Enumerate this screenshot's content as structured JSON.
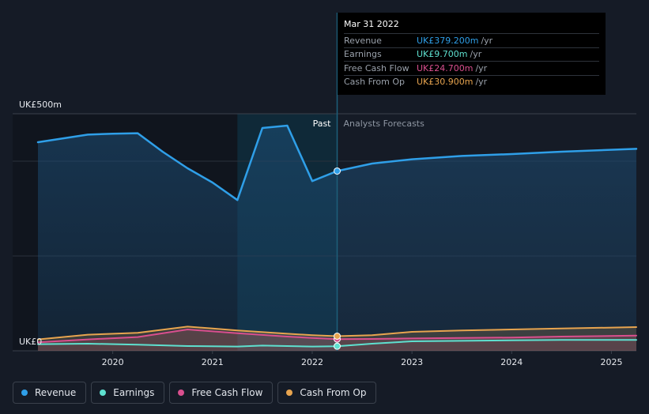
{
  "chart_data": {
    "type": "line",
    "title": "",
    "xlabel": "",
    "ylabel": "",
    "y_axis_labels": [
      "UK£500m",
      "UK£0"
    ],
    "ylim": [
      0,
      500
    ],
    "xlim": [
      2019.25,
      2025.25
    ],
    "x_ticks": [
      {
        "value": 2020,
        "label": "2020"
      },
      {
        "value": 2021,
        "label": "2021"
      },
      {
        "value": 2022,
        "label": "2022"
      },
      {
        "value": 2023,
        "label": "2023"
      },
      {
        "value": 2024,
        "label": "2024"
      },
      {
        "value": 2025,
        "label": "2025"
      }
    ],
    "regions": {
      "past_label": "Past",
      "forecast_label": "Analysts Forecasts",
      "divider_x": 2022.25,
      "highlight_start_x": 2021.25
    },
    "series": [
      {
        "name": "Revenue",
        "color": "#2f9fe8",
        "area": true,
        "points": [
          [
            2019.25,
            440
          ],
          [
            2019.75,
            456
          ],
          [
            2020.0,
            458
          ],
          [
            2020.25,
            459
          ],
          [
            2020.5,
            420
          ],
          [
            2020.75,
            385
          ],
          [
            2021.0,
            355
          ],
          [
            2021.25,
            318
          ],
          [
            2021.5,
            470
          ],
          [
            2021.75,
            475
          ],
          [
            2022.0,
            358
          ],
          [
            2022.25,
            379.2
          ],
          [
            2022.6,
            395
          ],
          [
            2023.0,
            404
          ],
          [
            2023.5,
            411
          ],
          [
            2024.0,
            415
          ],
          [
            2024.5,
            420
          ],
          [
            2025.25,
            426
          ]
        ]
      },
      {
        "name": "Earnings",
        "color": "#5ee0cf",
        "area": false,
        "points": [
          [
            2019.25,
            14
          ],
          [
            2019.75,
            15
          ],
          [
            2020.25,
            13
          ],
          [
            2020.75,
            10
          ],
          [
            2021.25,
            9
          ],
          [
            2021.5,
            11
          ],
          [
            2022.0,
            9
          ],
          [
            2022.25,
            9.7
          ],
          [
            2022.6,
            15
          ],
          [
            2023.0,
            20
          ],
          [
            2023.5,
            21
          ],
          [
            2024.0,
            22
          ],
          [
            2024.5,
            23
          ],
          [
            2025.25,
            23
          ]
        ]
      },
      {
        "name": "Free Cash Flow",
        "color": "#d94f8e",
        "area": true,
        "points": [
          [
            2019.25,
            18
          ],
          [
            2019.75,
            24
          ],
          [
            2020.25,
            29
          ],
          [
            2020.75,
            45
          ],
          [
            2021.0,
            41
          ],
          [
            2021.25,
            37
          ],
          [
            2021.75,
            30
          ],
          [
            2022.0,
            27
          ],
          [
            2022.25,
            24.7
          ],
          [
            2022.6,
            25
          ],
          [
            2023.0,
            26
          ],
          [
            2023.5,
            27
          ],
          [
            2024.0,
            28
          ],
          [
            2024.5,
            30
          ],
          [
            2025.25,
            32
          ]
        ]
      },
      {
        "name": "Cash From Op",
        "color": "#e7a44f",
        "area": true,
        "points": [
          [
            2019.25,
            24
          ],
          [
            2019.75,
            34
          ],
          [
            2020.25,
            38
          ],
          [
            2020.75,
            51
          ],
          [
            2021.0,
            47
          ],
          [
            2021.25,
            43
          ],
          [
            2021.75,
            36
          ],
          [
            2022.0,
            33
          ],
          [
            2022.25,
            30.9
          ],
          [
            2022.6,
            33
          ],
          [
            2023.0,
            40
          ],
          [
            2023.5,
            43
          ],
          [
            2024.0,
            45
          ],
          [
            2024.5,
            47
          ],
          [
            2025.25,
            50
          ]
        ]
      }
    ],
    "tooltip": {
      "date": "Mar 31 2022",
      "rows": [
        {
          "name": "Revenue",
          "value": "UK£379.200m",
          "unit": "/yr",
          "color": "#2f9fe8"
        },
        {
          "name": "Earnings",
          "value": "UK£9.700m",
          "unit": "/yr",
          "color": "#5ee0cf"
        },
        {
          "name": "Free Cash Flow",
          "value": "UK£24.700m",
          "unit": "/yr",
          "color": "#d94f8e"
        },
        {
          "name": "Cash From Op",
          "value": "UK£30.900m",
          "unit": "/yr",
          "color": "#e7a44f"
        }
      ]
    },
    "legend": [
      {
        "name": "Revenue",
        "color": "#2f9fe8"
      },
      {
        "name": "Earnings",
        "color": "#5ee0cf"
      },
      {
        "name": "Free Cash Flow",
        "color": "#d94f8e"
      },
      {
        "name": "Cash From Op",
        "color": "#e7a44f"
      }
    ]
  }
}
